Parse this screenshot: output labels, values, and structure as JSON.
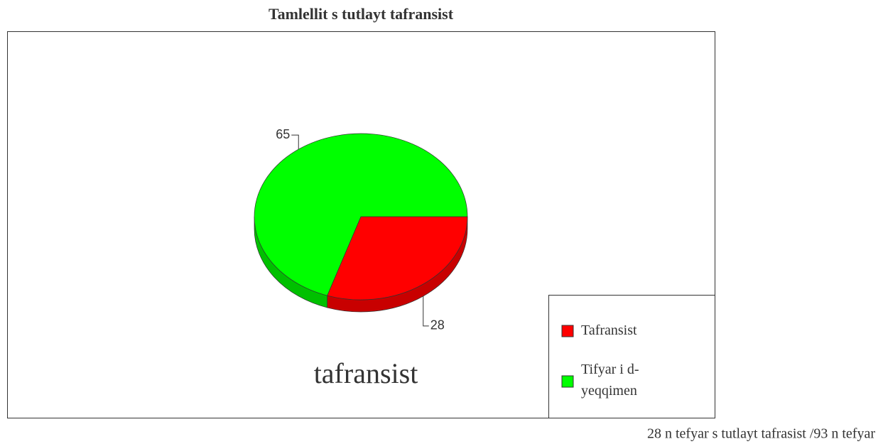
{
  "chart_data": {
    "type": "pie",
    "title": "Tamlellit s tutlayt tafransist",
    "series": [
      {
        "name": "Tafransist",
        "color": "#ff0000",
        "side_color": "#c80000",
        "values": [
          28
        ]
      },
      {
        "name": "Tifyar i d-yeqqimen",
        "color": "#00ff00",
        "side_color": "#00c000",
        "values": [
          65
        ]
      }
    ],
    "annotation": "tafransist",
    "footer": "28 n tefyar s tutlayt tafrasist /93 n tefyar",
    "legend": "bottom-right"
  }
}
